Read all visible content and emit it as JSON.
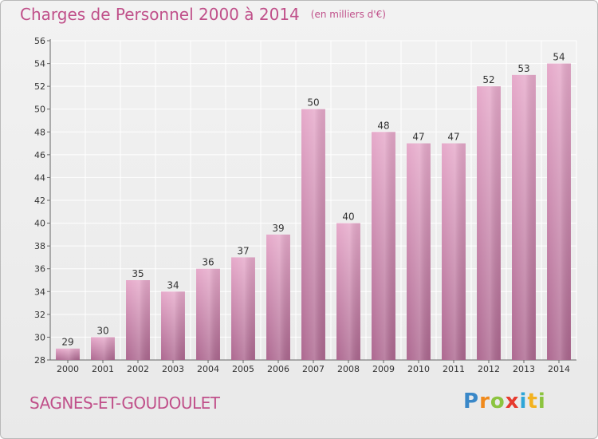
{
  "header": {
    "title": "Charges de Personnel 2000 à 2014",
    "unit": "(en milliers d'€)"
  },
  "footer": {
    "commune": "SAGNES-ET-GOUDOULET",
    "logo_text": "Proxiti"
  },
  "colors": {
    "accent": "#c0508a",
    "bar_top": "#e4a6c8",
    "bar_bottom": "#b06b92",
    "grid": "#ffffff",
    "background": "#eeeeee"
  },
  "chart_data": {
    "type": "bar",
    "title": "Charges de Personnel 2000 à 2014",
    "subtitle": "(en milliers d'€)",
    "xlabel": "",
    "ylabel": "",
    "categories": [
      "2000",
      "2001",
      "2002",
      "2003",
      "2004",
      "2005",
      "2006",
      "2007",
      "2008",
      "2009",
      "2010",
      "2011",
      "2012",
      "2013",
      "2014"
    ],
    "values": [
      29,
      30,
      35,
      34,
      36,
      37,
      39,
      50,
      40,
      48,
      47,
      47,
      52,
      53,
      54
    ],
    "ylim": [
      28,
      56
    ],
    "yticks": [
      28,
      30,
      32,
      34,
      36,
      38,
      40,
      42,
      44,
      46,
      48,
      50,
      52,
      54,
      56
    ],
    "grid": true,
    "data_labels": true
  }
}
